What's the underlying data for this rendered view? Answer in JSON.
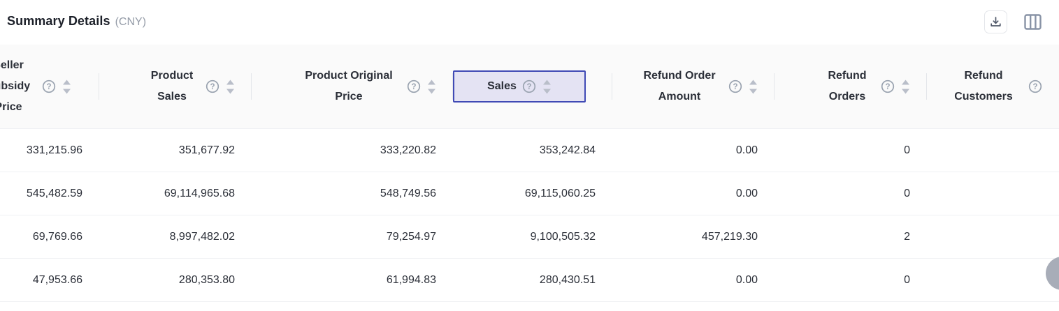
{
  "page": {
    "title": "Summary Details",
    "currency_note": "(CNY)"
  },
  "toolbar": {
    "icons": {
      "download": "download-icon",
      "column_settings": "column-settings-icon",
      "help": "question-circle-icon",
      "sorter": "caret-up-down-icon"
    }
  },
  "table": {
    "columns": [
      {
        "label": "Seller Subsidy Price",
        "help": true,
        "sortable": true,
        "highlighted": false
      },
      {
        "label": "Product Sales",
        "help": true,
        "sortable": true,
        "highlighted": false
      },
      {
        "label": "Product Original Price",
        "help": true,
        "sortable": true,
        "highlighted": false
      },
      {
        "label": "Sales",
        "help": true,
        "sortable": true,
        "highlighted": true
      },
      {
        "label": "Refund Order Amount",
        "help": true,
        "sortable": true,
        "highlighted": false
      },
      {
        "label": "Refund Orders",
        "help": true,
        "sortable": true,
        "highlighted": false
      },
      {
        "label": "Refund Customers",
        "help": true,
        "sortable": false,
        "highlighted": false
      }
    ],
    "rows": [
      [
        "331,215.96",
        "351,677.92",
        "333,220.82",
        "353,242.84",
        "0.00",
        "0",
        ""
      ],
      [
        "545,482.59",
        "69,114,965.68",
        "548,749.56",
        "69,115,060.25",
        "0.00",
        "0",
        ""
      ],
      [
        "69,769.66",
        "8,997,482.02",
        "79,254.97",
        "9,100,505.32",
        "457,219.30",
        "2",
        ""
      ],
      [
        "47,953.66",
        "280,353.80",
        "61,994.83",
        "280,430.51",
        "0.00",
        "0",
        ""
      ]
    ]
  },
  "colors": {
    "highlight_border": "#404ab5",
    "highlight_bg": "#e4e3f3",
    "header_bg": "#fafafa",
    "title_text": "#1c2029",
    "body_text": "#2b2f38",
    "icon_gray": "#9aa3b0",
    "float_circle": "#a8adb8"
  }
}
